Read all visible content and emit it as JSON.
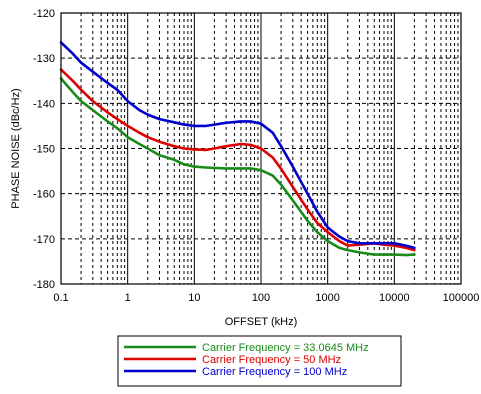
{
  "chart_data": {
    "type": "line",
    "title": "",
    "xlabel": "OFFSET (kHz)",
    "ylabel": "PHASE NOISE (dBc/Hz)",
    "x_scale": "log",
    "xlim": [
      0.1,
      100000
    ],
    "ylim": [
      -180,
      -120
    ],
    "x_ticks": [
      0.1,
      1,
      10,
      100,
      1000,
      10000,
      100000
    ],
    "x_tick_labels": [
      "0.1",
      "1",
      "10",
      "100",
      "1000",
      "10000",
      "100000"
    ],
    "y_ticks": [
      -180,
      -170,
      -160,
      -150,
      -140,
      -130,
      -120
    ],
    "y_tick_labels": [
      "-180",
      "-170",
      "-160",
      "-150",
      "-140",
      "-130",
      "-120"
    ],
    "grid": true,
    "legend_position": "bottom-center",
    "series": [
      {
        "name": "Carrier Frequency  = 33.0645 MHz",
        "color": "#1a8a1a",
        "x": [
          0.1,
          0.15,
          0.2,
          0.3,
          0.5,
          0.7,
          1,
          1.5,
          2,
          3,
          5,
          7,
          10,
          15,
          20,
          30,
          50,
          70,
          100,
          150,
          200,
          300,
          500,
          700,
          1000,
          1500,
          2000,
          3000,
          5000,
          7000,
          10000,
          15000,
          20000
        ],
        "y": [
          -134.5,
          -137.5,
          -139.5,
          -141.5,
          -144,
          -145.5,
          -147.5,
          -149,
          -150,
          -151.5,
          -152.5,
          -153.5,
          -154,
          -154.2,
          -154.3,
          -154.4,
          -154.4,
          -154.4,
          -154.8,
          -156,
          -158,
          -161.5,
          -166,
          -168.5,
          -170.5,
          -172,
          -172.5,
          -173,
          -173.5,
          -173.5,
          -173.5,
          -173.6,
          -173.5
        ]
      },
      {
        "name": "Carrier Frequency = 50 MHz",
        "color": "#dd0000",
        "x": [
          0.1,
          0.15,
          0.2,
          0.3,
          0.5,
          0.7,
          1,
          1.5,
          2,
          3,
          5,
          7,
          10,
          15,
          20,
          30,
          50,
          70,
          100,
          150,
          200,
          300,
          500,
          700,
          1000,
          1500,
          2000,
          3000,
          5000,
          7000,
          10000,
          15000,
          20000
        ],
        "y": [
          -132.5,
          -135,
          -137,
          -139.5,
          -142,
          -143.5,
          -145,
          -146.5,
          -147.5,
          -148.5,
          -149.5,
          -150,
          -150.2,
          -150.3,
          -150,
          -149.5,
          -149,
          -149.2,
          -150,
          -152,
          -154.5,
          -158.5,
          -163.5,
          -166.5,
          -168.5,
          -170.5,
          -171.5,
          -171.3,
          -171,
          -171.3,
          -171.5,
          -172,
          -172.5
        ]
      },
      {
        "name": "Carrier Frequency = 100 MHz",
        "color": "#0000cc",
        "x": [
          0.1,
          0.15,
          0.2,
          0.3,
          0.5,
          0.7,
          1,
          1.5,
          2,
          3,
          5,
          7,
          10,
          15,
          20,
          30,
          50,
          70,
          100,
          150,
          200,
          300,
          500,
          700,
          1000,
          1500,
          2000,
          3000,
          5000,
          7000,
          10000,
          15000,
          20000
        ],
        "y": [
          -126.5,
          -129,
          -131,
          -133,
          -135.5,
          -137,
          -139.5,
          -141.5,
          -142.5,
          -143.5,
          -144.2,
          -144.7,
          -145,
          -145,
          -144.7,
          -144.3,
          -144,
          -144,
          -144.5,
          -146.5,
          -149.5,
          -154,
          -160,
          -164,
          -167.5,
          -169.5,
          -170.5,
          -171,
          -171,
          -171,
          -171,
          -171.5,
          -172
        ]
      }
    ]
  }
}
